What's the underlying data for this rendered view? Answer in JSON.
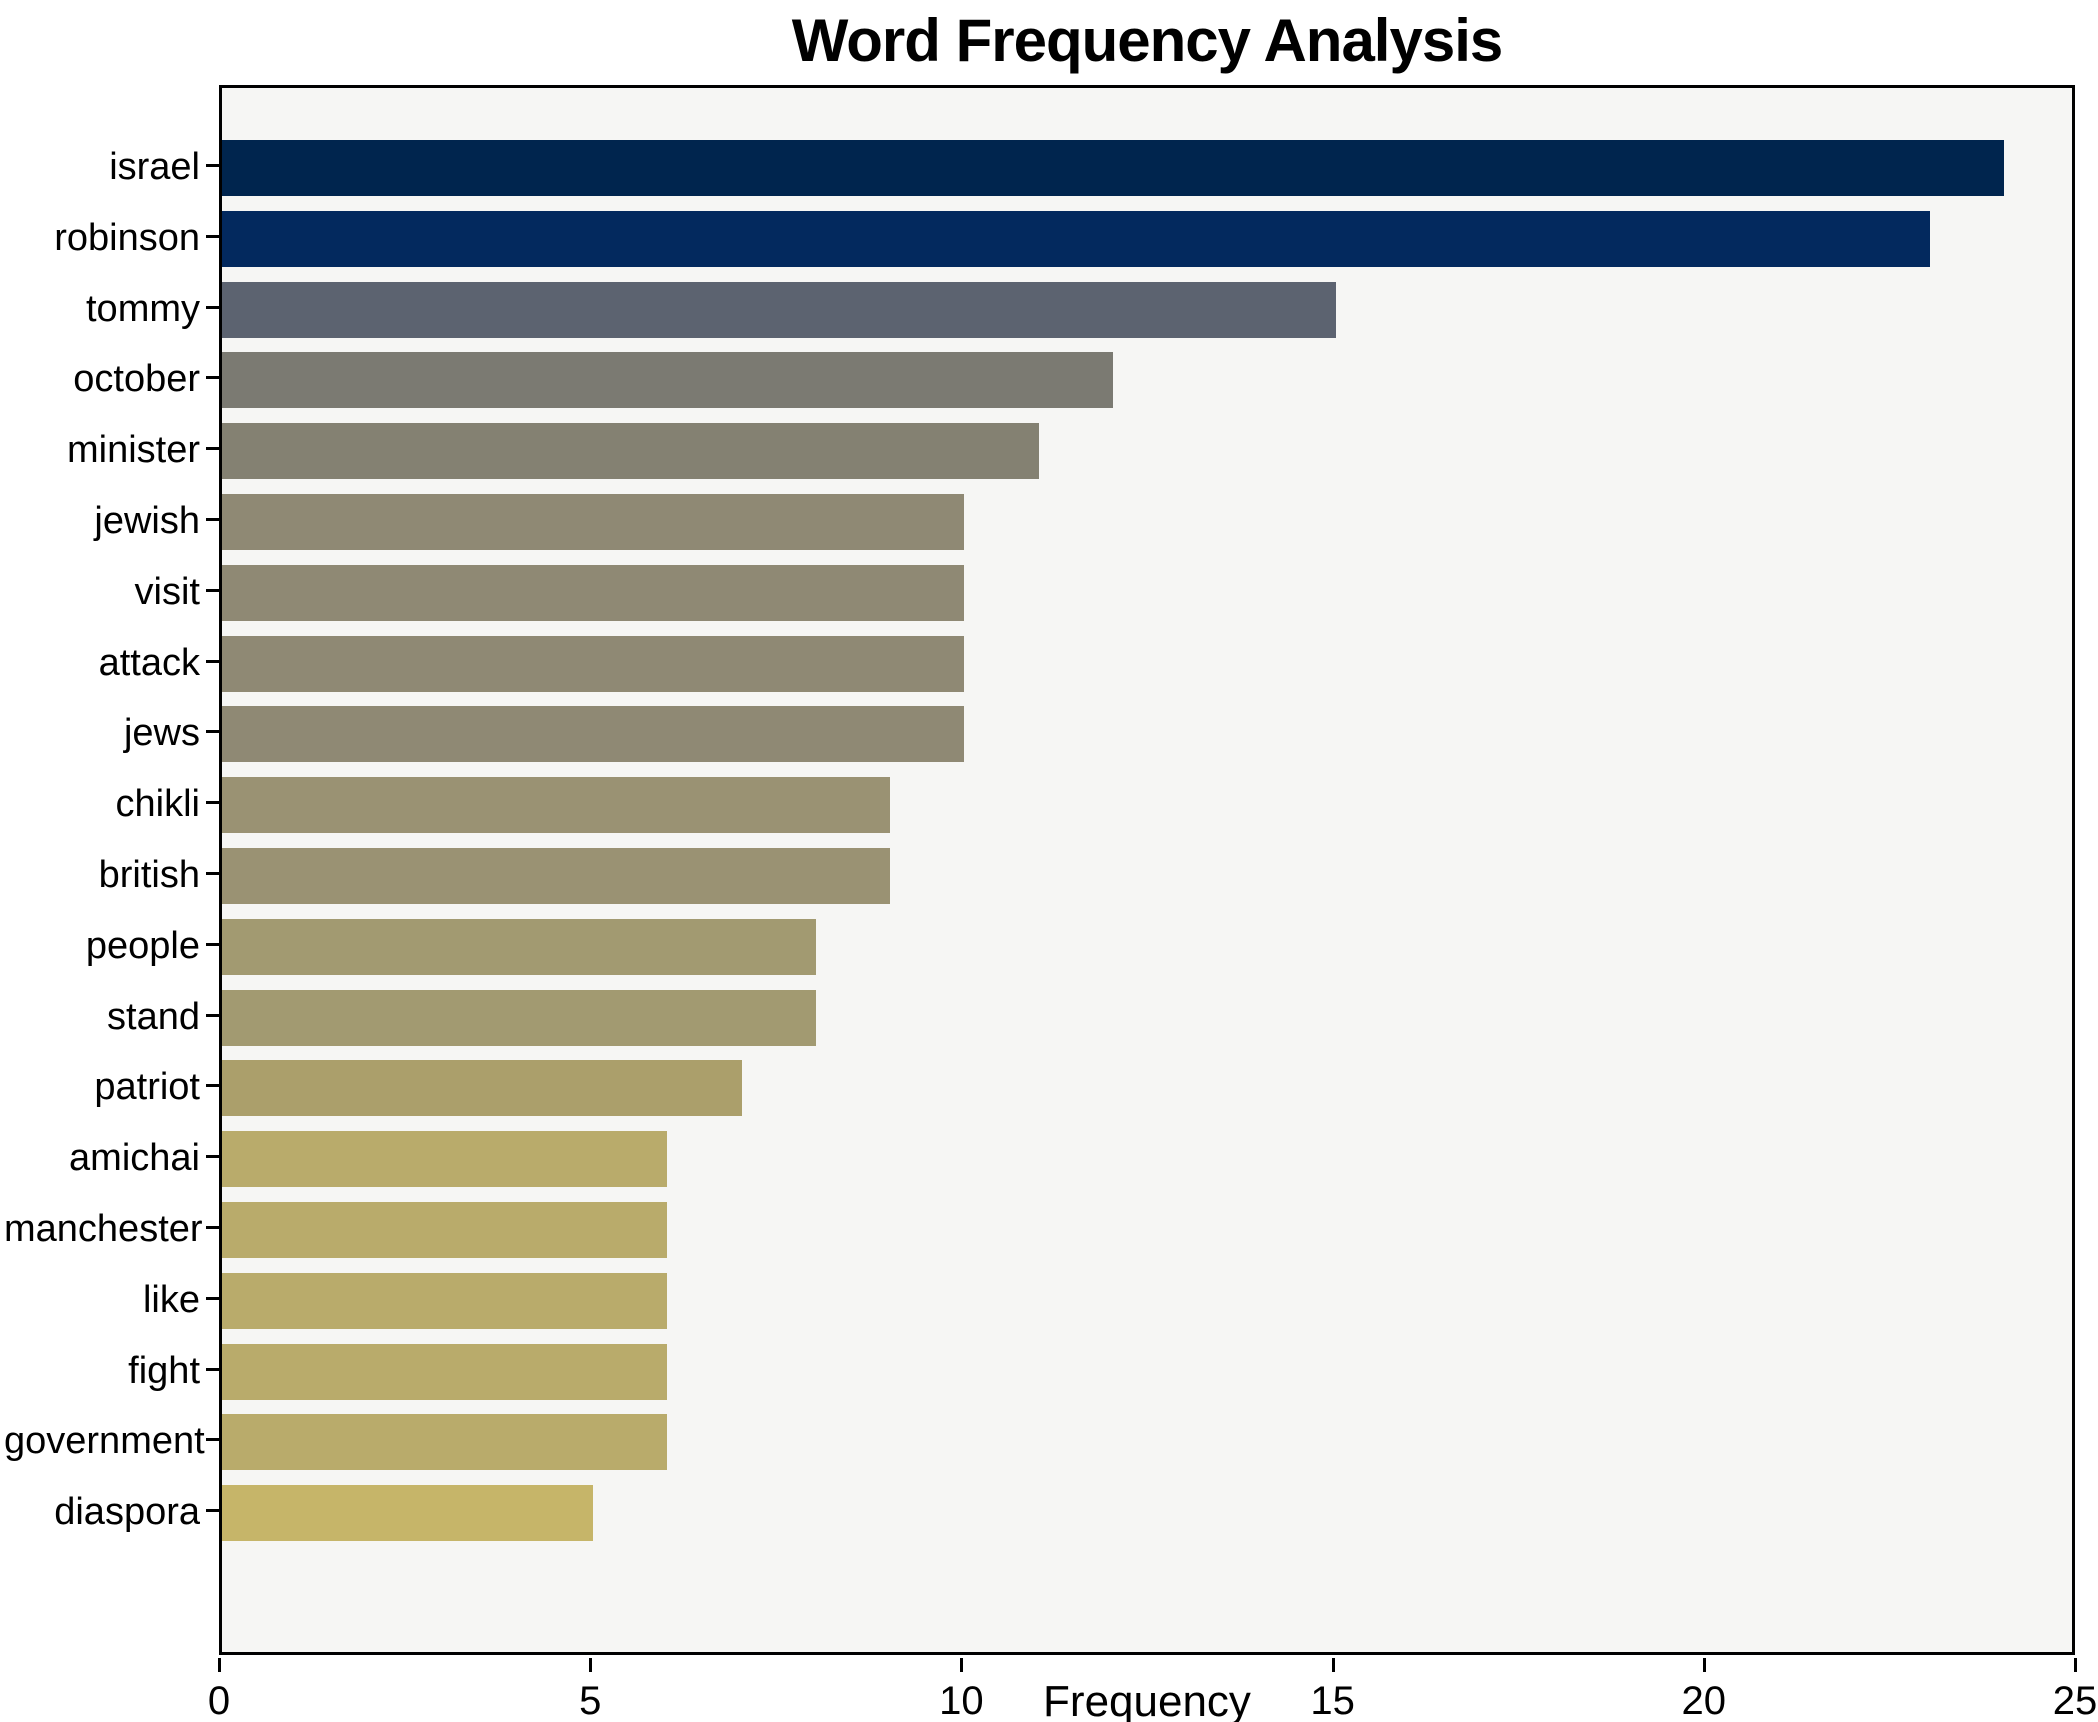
{
  "chart_data": {
    "type": "bar",
    "orientation": "horizontal",
    "title": "Word Frequency Analysis",
    "xlabel": "Frequency",
    "ylabel": "",
    "xlim": [
      0,
      25
    ],
    "xticks": [
      0,
      5,
      10,
      15,
      20,
      25
    ],
    "grid": false,
    "legend": false,
    "plot_background": "#f6f6f4",
    "spine_color": "#000000",
    "categories": [
      "israel",
      "robinson",
      "tommy",
      "october",
      "minister",
      "jewish",
      "visit",
      "attack",
      "jews",
      "chikli",
      "british",
      "people",
      "stand",
      "patriot",
      "amichai",
      "manchester",
      "like",
      "fight",
      "government",
      "diaspora"
    ],
    "values": [
      24,
      23,
      15,
      12,
      11,
      10,
      10,
      10,
      10,
      9,
      9,
      8,
      8,
      7,
      6,
      6,
      6,
      6,
      6,
      5
    ],
    "bar_colors": [
      "#00254e",
      "#03295e",
      "#5c6370",
      "#7b7a72",
      "#848172",
      "#8f8974",
      "#8f8974",
      "#8f8974",
      "#8f8974",
      "#9a9273",
      "#9a9273",
      "#a29a71",
      "#a29a71",
      "#ab9f6b",
      "#b9ab6b",
      "#b9ab6b",
      "#b9ab6b",
      "#b9ab6b",
      "#b9ab6b",
      "#c6b569"
    ]
  }
}
